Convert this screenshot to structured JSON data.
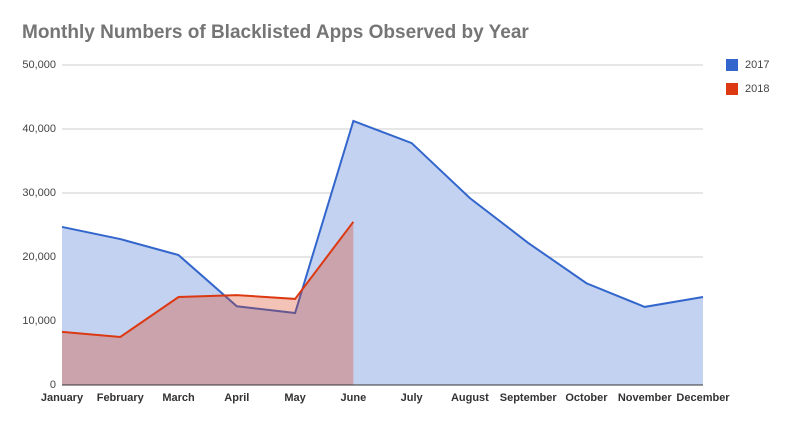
{
  "chart_data": {
    "type": "area",
    "title": "Monthly Numbers of Blacklisted Apps Observed by Year",
    "categories": [
      "January",
      "February",
      "March",
      "April",
      "May",
      "June",
      "July",
      "August",
      "September",
      "October",
      "November",
      "December"
    ],
    "series": [
      {
        "name": "2017",
        "color": "#3366cc",
        "values": [
          24700,
          22800,
          20300,
          12300,
          11250,
          41250,
          37800,
          29200,
          22200,
          15900,
          12200,
          13750
        ]
      },
      {
        "name": "2018",
        "color": "#dc3912",
        "values": [
          8300,
          7500,
          13750,
          14050,
          13450,
          25500,
          null,
          null,
          null,
          null,
          null,
          null
        ]
      }
    ],
    "ylim": [
      0,
      50000
    ],
    "yticks": [
      0,
      {
        "value": 10000,
        "label": "10,000"
      },
      {
        "value": 20000,
        "label": "20,000"
      },
      {
        "value": 30000,
        "label": "30,000"
      },
      {
        "value": 40000,
        "label": "40,000"
      },
      {
        "value": 50000,
        "label": "50,000"
      }
    ],
    "grid": true,
    "legend": "right"
  }
}
